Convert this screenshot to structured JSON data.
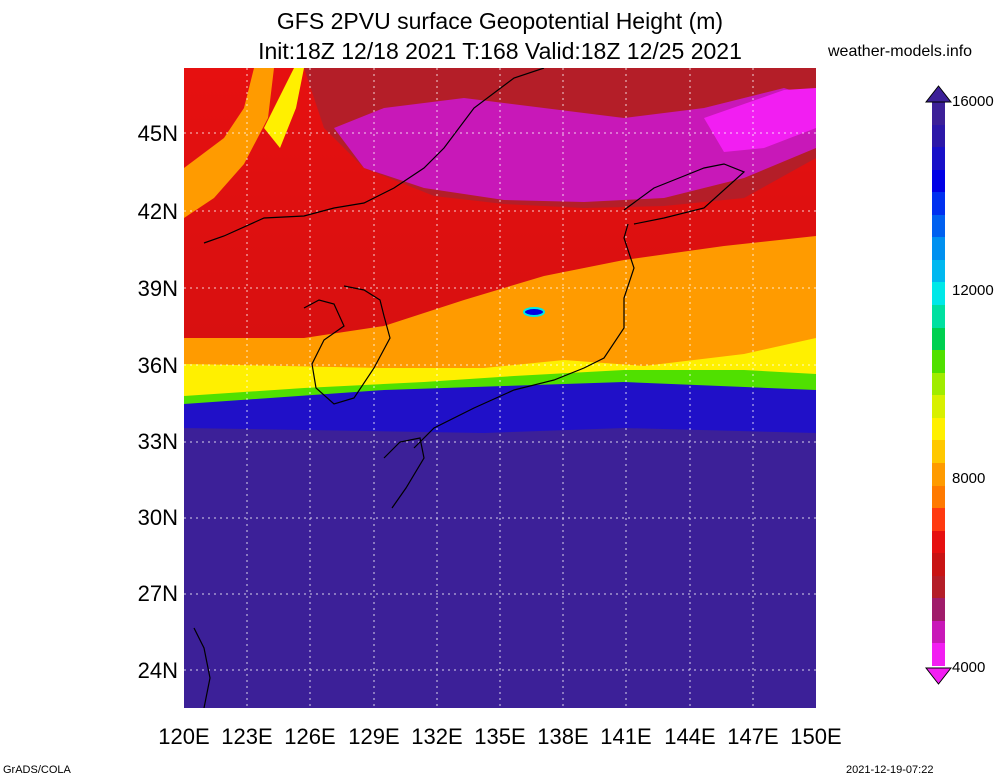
{
  "header": {
    "title_line1": "GFS 2PVU surface Geopotential Height (m)",
    "title_line2": "Init:18Z 12/18 2021 T:168 Valid:18Z 12/25 2021",
    "site": "weather-models.info"
  },
  "axes": {
    "lat_labels": [
      "45N",
      "42N",
      "39N",
      "36N",
      "33N",
      "30N",
      "27N",
      "24N"
    ],
    "lon_labels": [
      "120E",
      "123E",
      "126E",
      "129E",
      "132E",
      "135E",
      "138E",
      "141E",
      "144E",
      "147E",
      "150E"
    ]
  },
  "colorbar": {
    "labels": [
      "16000",
      "12000",
      "8000",
      "4000"
    ],
    "colors": [
      "#f21ef2",
      "#c818b8",
      "#a01c6a",
      "#b41e28",
      "#c81414",
      "#e61010",
      "#ff3a10",
      "#ff7a00",
      "#ff9b00",
      "#ffc800",
      "#fff000",
      "#d8f000",
      "#a0ec00",
      "#50e000",
      "#00d050",
      "#00e0a0",
      "#00e8e8",
      "#00b8f0",
      "#0090f0",
      "#0060f0",
      "#0030f0",
      "#0000e6",
      "#1810c8",
      "#2c18a8",
      "#3c2098"
    ]
  },
  "footer": {
    "left": "GrADS/COLA",
    "right": "2021-12-19-07:22"
  }
}
